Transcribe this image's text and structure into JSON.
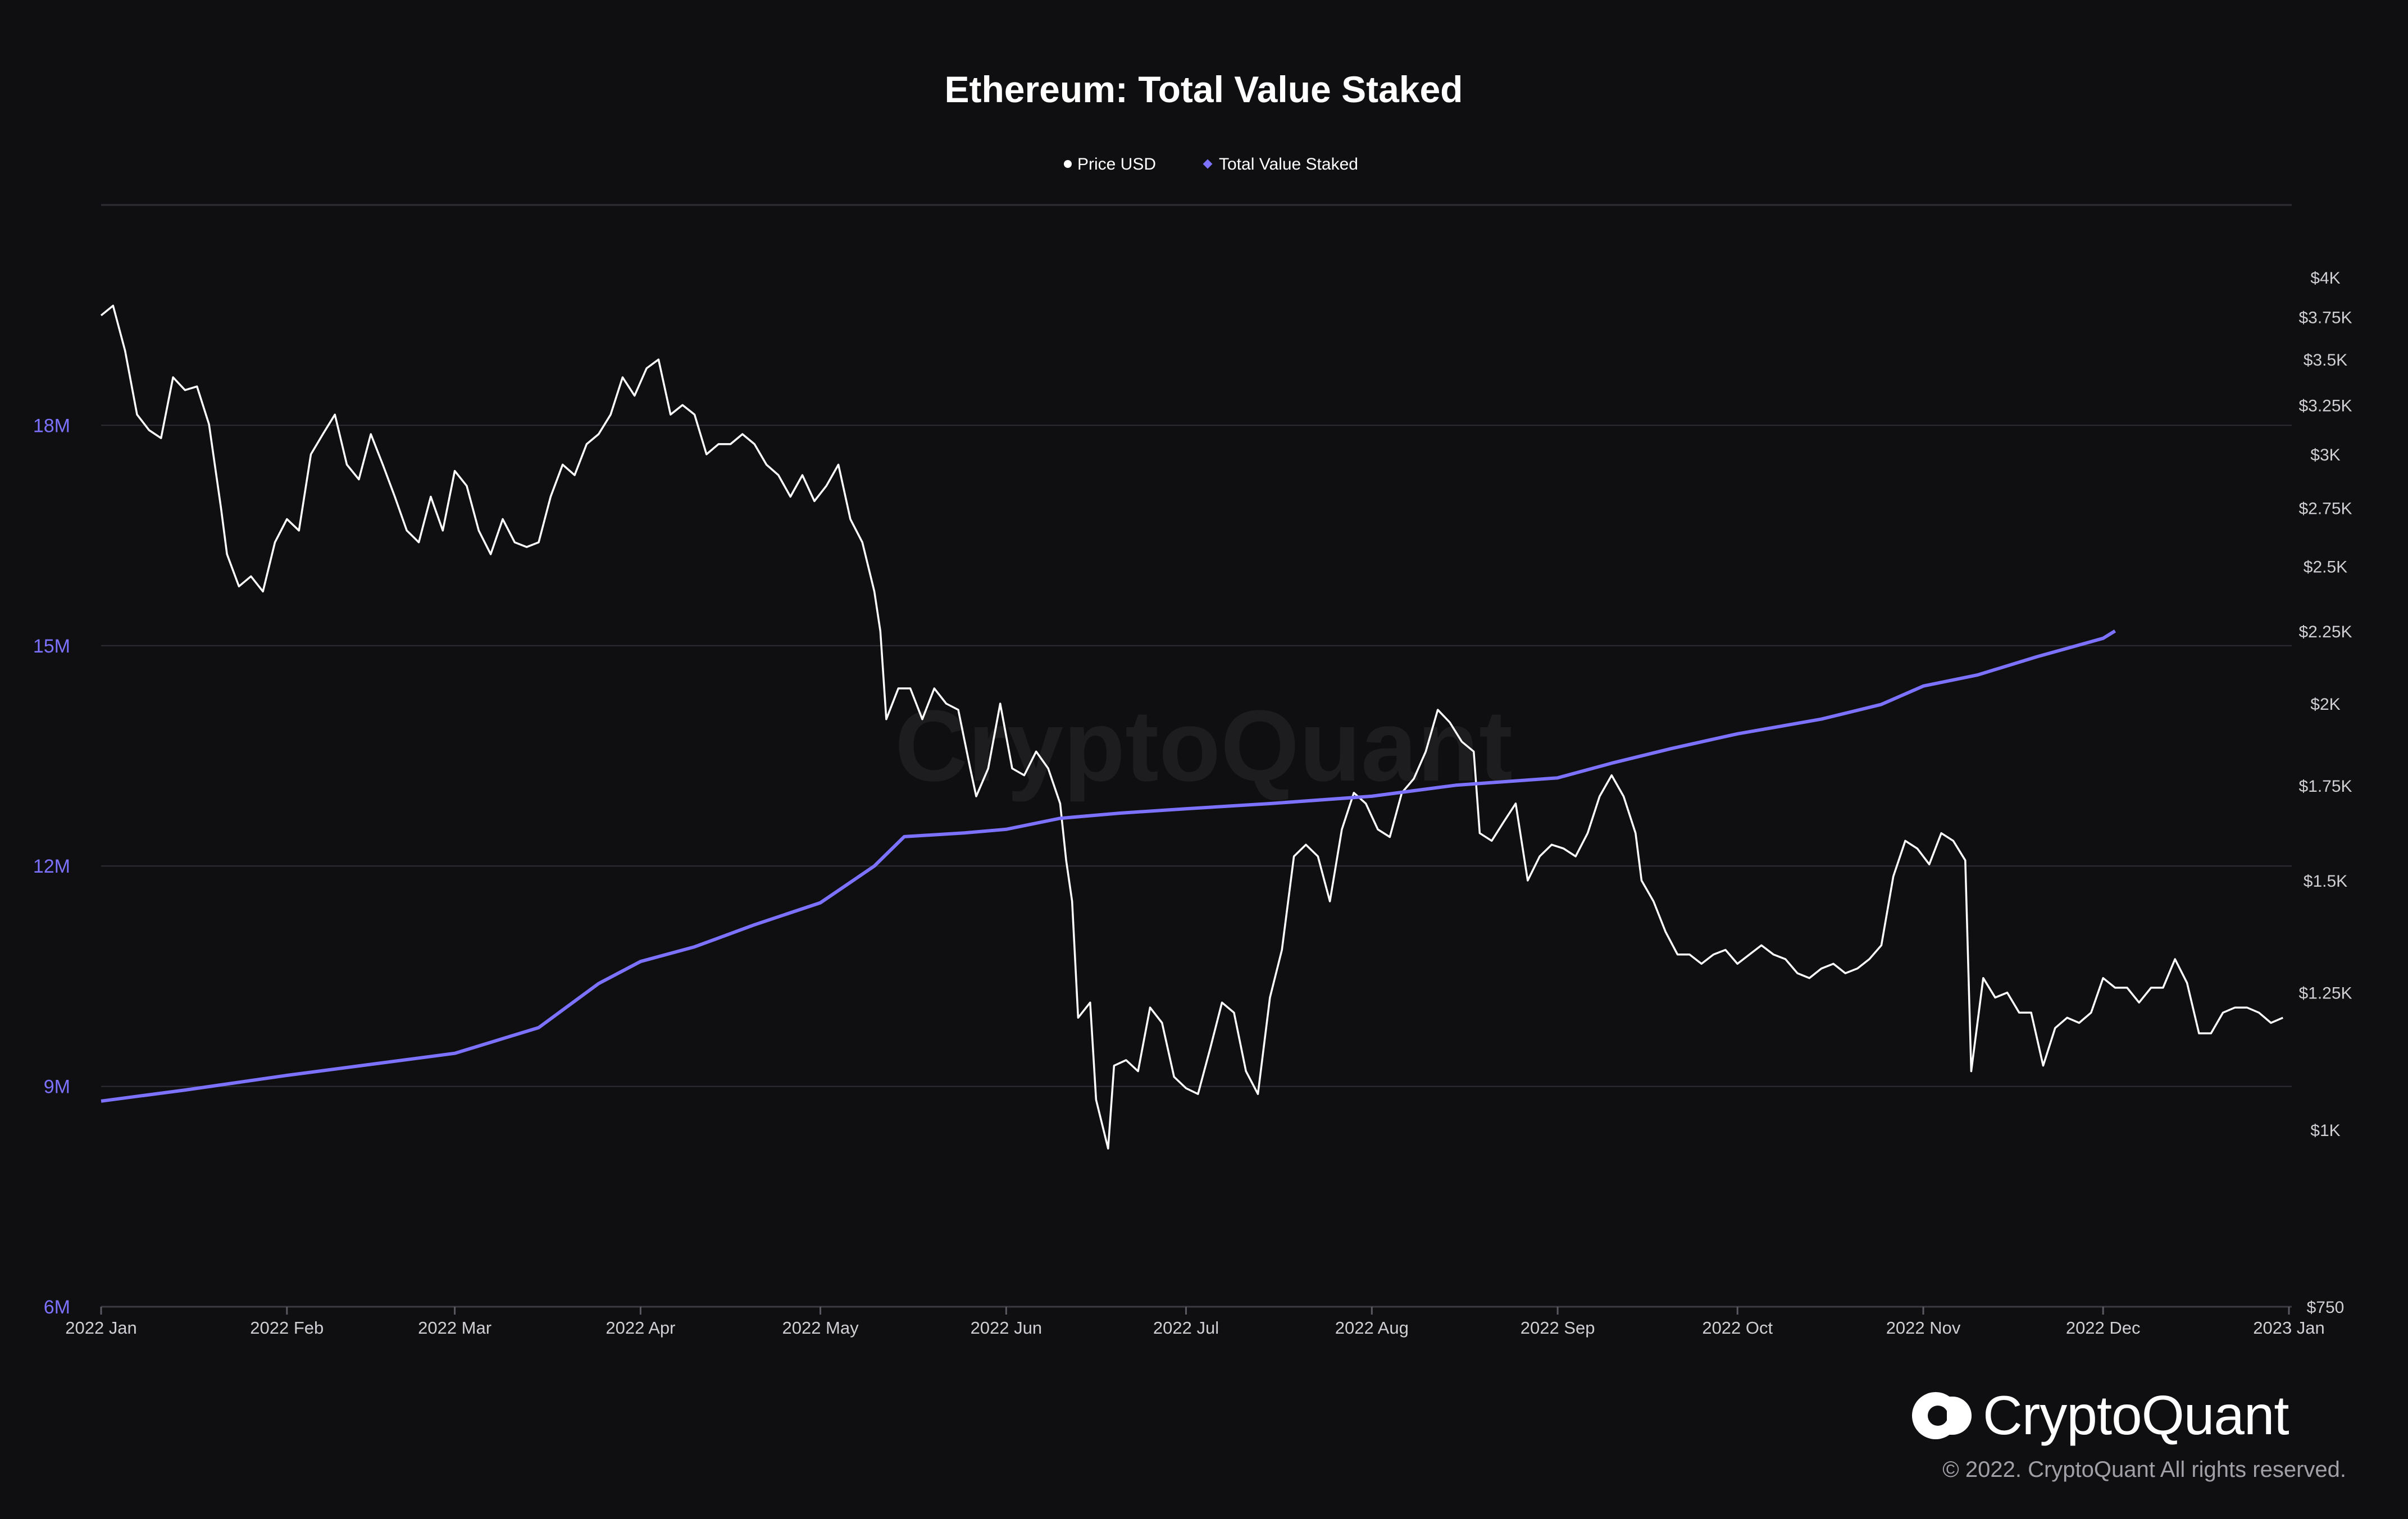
{
  "chart_data": {
    "type": "line",
    "title": "Ethereum: Total Value Staked",
    "legend": {
      "placement": "top-center",
      "entries": [
        {
          "name": "Price USD",
          "color": "#ffffff"
        },
        {
          "name": "Total Value Staked",
          "color": "#7c72ff"
        }
      ]
    },
    "x_axis": {
      "type": "date",
      "range": [
        "2022-01-01",
        "2023-01-01"
      ],
      "ticks": [
        {
          "date": "2022-01-01",
          "label": "2022 Jan"
        },
        {
          "date": "2022-02-01",
          "label": "2022 Feb"
        },
        {
          "date": "2022-03-01",
          "label": "2022 Mar"
        },
        {
          "date": "2022-04-01",
          "label": "2022 Apr"
        },
        {
          "date": "2022-05-01",
          "label": "2022 May"
        },
        {
          "date": "2022-06-01",
          "label": "2022 Jun"
        },
        {
          "date": "2022-07-01",
          "label": "2022 Jul"
        },
        {
          "date": "2022-08-01",
          "label": "2022 Aug"
        },
        {
          "date": "2022-09-01",
          "label": "2022 Sep"
        },
        {
          "date": "2022-10-01",
          "label": "2022 Oct"
        },
        {
          "date": "2022-11-01",
          "label": "2022 Nov"
        },
        {
          "date": "2022-12-01",
          "label": "2022 Dec"
        },
        {
          "date": "2023-01-01",
          "label": "2023 Jan"
        }
      ]
    },
    "y_axis_left": {
      "series": "Total Value Staked",
      "scale": "linear",
      "range": [
        6000000,
        21000000
      ],
      "ticks": [
        {
          "value": 6000000,
          "label": "6M"
        },
        {
          "value": 9000000,
          "label": "9M"
        },
        {
          "value": 12000000,
          "label": "12M"
        },
        {
          "value": 15000000,
          "label": "15M"
        },
        {
          "value": 18000000,
          "label": "18M"
        }
      ],
      "grid": true
    },
    "y_axis_right": {
      "series": "Price USD",
      "scale": "log",
      "range": [
        750,
        4500
      ],
      "ticks": [
        {
          "value": 750,
          "label": "$750"
        },
        {
          "value": 1000,
          "label": "$1K"
        },
        {
          "value": 1250,
          "label": "$1.25K"
        },
        {
          "value": 1500,
          "label": "$1.5K"
        },
        {
          "value": 1750,
          "label": "$1.75K"
        },
        {
          "value": 2000,
          "label": "$2K"
        },
        {
          "value": 2250,
          "label": "$2.25K"
        },
        {
          "value": 2500,
          "label": "$2.5K"
        },
        {
          "value": 2750,
          "label": "$2.75K"
        },
        {
          "value": 3000,
          "label": "$3K"
        },
        {
          "value": 3250,
          "label": "$3.25K"
        },
        {
          "value": 3500,
          "label": "$3.5K"
        },
        {
          "value": 3750,
          "label": "$3.75K"
        },
        {
          "value": 4000,
          "label": "$4K"
        }
      ]
    },
    "series": [
      {
        "name": "Price USD",
        "axis": "right",
        "color": "#ffffff",
        "points": [
          [
            "2022-01-01",
            3760
          ],
          [
            "2022-01-03",
            3820
          ],
          [
            "2022-01-05",
            3550
          ],
          [
            "2022-01-07",
            3200
          ],
          [
            "2022-01-09",
            3120
          ],
          [
            "2022-01-11",
            3080
          ],
          [
            "2022-01-13",
            3400
          ],
          [
            "2022-01-15",
            3330
          ],
          [
            "2022-01-17",
            3350
          ],
          [
            "2022-01-19",
            3150
          ],
          [
            "2022-01-21",
            2750
          ],
          [
            "2022-01-22",
            2550
          ],
          [
            "2022-01-24",
            2420
          ],
          [
            "2022-01-26",
            2460
          ],
          [
            "2022-01-28",
            2400
          ],
          [
            "2022-01-30",
            2600
          ],
          [
            "2022-02-01",
            2700
          ],
          [
            "2022-02-03",
            2650
          ],
          [
            "2022-02-05",
            3000
          ],
          [
            "2022-02-07",
            3100
          ],
          [
            "2022-02-09",
            3200
          ],
          [
            "2022-02-11",
            2950
          ],
          [
            "2022-02-13",
            2880
          ],
          [
            "2022-02-15",
            3100
          ],
          [
            "2022-02-17",
            2950
          ],
          [
            "2022-02-19",
            2800
          ],
          [
            "2022-02-21",
            2650
          ],
          [
            "2022-02-23",
            2600
          ],
          [
            "2022-02-25",
            2800
          ],
          [
            "2022-02-27",
            2650
          ],
          [
            "2022-03-01",
            2920
          ],
          [
            "2022-03-03",
            2850
          ],
          [
            "2022-03-05",
            2650
          ],
          [
            "2022-03-07",
            2550
          ],
          [
            "2022-03-09",
            2700
          ],
          [
            "2022-03-11",
            2600
          ],
          [
            "2022-03-13",
            2580
          ],
          [
            "2022-03-15",
            2600
          ],
          [
            "2022-03-17",
            2800
          ],
          [
            "2022-03-19",
            2950
          ],
          [
            "2022-03-21",
            2900
          ],
          [
            "2022-03-23",
            3050
          ],
          [
            "2022-03-25",
            3100
          ],
          [
            "2022-03-27",
            3200
          ],
          [
            "2022-03-29",
            3400
          ],
          [
            "2022-03-31",
            3300
          ],
          [
            "2022-04-02",
            3450
          ],
          [
            "2022-04-04",
            3500
          ],
          [
            "2022-04-06",
            3200
          ],
          [
            "2022-04-08",
            3250
          ],
          [
            "2022-04-10",
            3200
          ],
          [
            "2022-04-12",
            3000
          ],
          [
            "2022-04-14",
            3050
          ],
          [
            "2022-04-16",
            3050
          ],
          [
            "2022-04-18",
            3100
          ],
          [
            "2022-04-20",
            3050
          ],
          [
            "2022-04-22",
            2950
          ],
          [
            "2022-04-24",
            2900
          ],
          [
            "2022-04-26",
            2800
          ],
          [
            "2022-04-28",
            2900
          ],
          [
            "2022-04-30",
            2780
          ],
          [
            "2022-05-02",
            2850
          ],
          [
            "2022-05-04",
            2950
          ],
          [
            "2022-05-06",
            2700
          ],
          [
            "2022-05-08",
            2600
          ],
          [
            "2022-05-10",
            2400
          ],
          [
            "2022-05-11",
            2250
          ],
          [
            "2022-05-12",
            1950
          ],
          [
            "2022-05-14",
            2050
          ],
          [
            "2022-05-16",
            2050
          ],
          [
            "2022-05-18",
            1950
          ],
          [
            "2022-05-20",
            2050
          ],
          [
            "2022-05-22",
            2000
          ],
          [
            "2022-05-24",
            1980
          ],
          [
            "2022-05-26",
            1800
          ],
          [
            "2022-05-27",
            1720
          ],
          [
            "2022-05-29",
            1800
          ],
          [
            "2022-05-31",
            2000
          ],
          [
            "2022-06-02",
            1800
          ],
          [
            "2022-06-04",
            1780
          ],
          [
            "2022-06-06",
            1850
          ],
          [
            "2022-06-08",
            1800
          ],
          [
            "2022-06-10",
            1700
          ],
          [
            "2022-06-11",
            1550
          ],
          [
            "2022-06-12",
            1450
          ],
          [
            "2022-06-13",
            1200
          ],
          [
            "2022-06-15",
            1230
          ],
          [
            "2022-06-16",
            1050
          ],
          [
            "2022-06-18",
            970
          ],
          [
            "2022-06-19",
            1110
          ],
          [
            "2022-06-21",
            1120
          ],
          [
            "2022-06-23",
            1100
          ],
          [
            "2022-06-25",
            1220
          ],
          [
            "2022-06-27",
            1190
          ],
          [
            "2022-06-29",
            1090
          ],
          [
            "2022-07-01",
            1070
          ],
          [
            "2022-07-03",
            1060
          ],
          [
            "2022-07-05",
            1140
          ],
          [
            "2022-07-07",
            1230
          ],
          [
            "2022-07-09",
            1210
          ],
          [
            "2022-07-11",
            1100
          ],
          [
            "2022-07-13",
            1060
          ],
          [
            "2022-07-15",
            1240
          ],
          [
            "2022-07-17",
            1340
          ],
          [
            "2022-07-19",
            1560
          ],
          [
            "2022-07-21",
            1590
          ],
          [
            "2022-07-23",
            1560
          ],
          [
            "2022-07-25",
            1450
          ],
          [
            "2022-07-27",
            1630
          ],
          [
            "2022-07-29",
            1730
          ],
          [
            "2022-07-31",
            1700
          ],
          [
            "2022-08-02",
            1630
          ],
          [
            "2022-08-04",
            1610
          ],
          [
            "2022-08-06",
            1730
          ],
          [
            "2022-08-08",
            1770
          ],
          [
            "2022-08-10",
            1850
          ],
          [
            "2022-08-12",
            1980
          ],
          [
            "2022-08-14",
            1940
          ],
          [
            "2022-08-16",
            1880
          ],
          [
            "2022-08-18",
            1850
          ],
          [
            "2022-08-19",
            1620
          ],
          [
            "2022-08-21",
            1600
          ],
          [
            "2022-08-23",
            1650
          ],
          [
            "2022-08-25",
            1700
          ],
          [
            "2022-08-27",
            1500
          ],
          [
            "2022-08-29",
            1560
          ],
          [
            "2022-08-31",
            1590
          ],
          [
            "2022-09-02",
            1580
          ],
          [
            "2022-09-04",
            1560
          ],
          [
            "2022-09-06",
            1620
          ],
          [
            "2022-09-08",
            1720
          ],
          [
            "2022-09-10",
            1780
          ],
          [
            "2022-09-12",
            1720
          ],
          [
            "2022-09-14",
            1620
          ],
          [
            "2022-09-15",
            1500
          ],
          [
            "2022-09-17",
            1450
          ],
          [
            "2022-09-19",
            1380
          ],
          [
            "2022-09-21",
            1330
          ],
          [
            "2022-09-23",
            1330
          ],
          [
            "2022-09-25",
            1310
          ],
          [
            "2022-09-27",
            1330
          ],
          [
            "2022-09-29",
            1340
          ],
          [
            "2022-10-01",
            1310
          ],
          [
            "2022-10-03",
            1330
          ],
          [
            "2022-10-05",
            1350
          ],
          [
            "2022-10-07",
            1330
          ],
          [
            "2022-10-09",
            1320
          ],
          [
            "2022-10-11",
            1290
          ],
          [
            "2022-10-13",
            1280
          ],
          [
            "2022-10-15",
            1300
          ],
          [
            "2022-10-17",
            1310
          ],
          [
            "2022-10-19",
            1290
          ],
          [
            "2022-10-21",
            1300
          ],
          [
            "2022-10-23",
            1320
          ],
          [
            "2022-10-25",
            1350
          ],
          [
            "2022-10-27",
            1510
          ],
          [
            "2022-10-29",
            1600
          ],
          [
            "2022-10-31",
            1580
          ],
          [
            "2022-11-02",
            1540
          ],
          [
            "2022-11-04",
            1620
          ],
          [
            "2022-11-06",
            1600
          ],
          [
            "2022-11-08",
            1550
          ],
          [
            "2022-11-09",
            1100
          ],
          [
            "2022-11-11",
            1280
          ],
          [
            "2022-11-13",
            1240
          ],
          [
            "2022-11-15",
            1250
          ],
          [
            "2022-11-17",
            1210
          ],
          [
            "2022-11-19",
            1210
          ],
          [
            "2022-11-21",
            1110
          ],
          [
            "2022-11-23",
            1180
          ],
          [
            "2022-11-25",
            1200
          ],
          [
            "2022-11-27",
            1190
          ],
          [
            "2022-11-29",
            1210
          ],
          [
            "2022-12-01",
            1280
          ],
          [
            "2022-12-03",
            1260
          ],
          [
            "2022-12-05",
            1260
          ],
          [
            "2022-12-07",
            1230
          ],
          [
            "2022-12-09",
            1260
          ],
          [
            "2022-12-11",
            1260
          ],
          [
            "2022-12-13",
            1320
          ],
          [
            "2022-12-15",
            1270
          ],
          [
            "2022-12-17",
            1170
          ],
          [
            "2022-12-19",
            1170
          ],
          [
            "2022-12-21",
            1210
          ],
          [
            "2022-12-23",
            1220
          ],
          [
            "2022-12-25",
            1220
          ],
          [
            "2022-12-27",
            1210
          ],
          [
            "2022-12-29",
            1190
          ],
          [
            "2022-12-31",
            1200
          ]
        ]
      },
      {
        "name": "Total Value Staked",
        "axis": "left",
        "color": "#7c72ff",
        "points": [
          [
            "2022-01-01",
            8800000
          ],
          [
            "2022-01-15",
            8950000
          ],
          [
            "2022-02-01",
            9150000
          ],
          [
            "2022-02-15",
            9300000
          ],
          [
            "2022-03-01",
            9450000
          ],
          [
            "2022-03-15",
            9800000
          ],
          [
            "2022-03-25",
            10400000
          ],
          [
            "2022-04-01",
            10700000
          ],
          [
            "2022-04-10",
            10900000
          ],
          [
            "2022-04-20",
            11200000
          ],
          [
            "2022-05-01",
            11500000
          ],
          [
            "2022-05-10",
            12000000
          ],
          [
            "2022-05-15",
            12400000
          ],
          [
            "2022-05-25",
            12450000
          ],
          [
            "2022-06-01",
            12500000
          ],
          [
            "2022-06-10",
            12650000
          ],
          [
            "2022-06-20",
            12720000
          ],
          [
            "2022-07-01",
            12780000
          ],
          [
            "2022-07-15",
            12850000
          ],
          [
            "2022-08-01",
            12950000
          ],
          [
            "2022-08-15",
            13100000
          ],
          [
            "2022-09-01",
            13200000
          ],
          [
            "2022-09-10",
            13400000
          ],
          [
            "2022-09-20",
            13600000
          ],
          [
            "2022-10-01",
            13800000
          ],
          [
            "2022-10-15",
            14000000
          ],
          [
            "2022-10-25",
            14200000
          ],
          [
            "2022-11-01",
            14450000
          ],
          [
            "2022-11-10",
            14600000
          ],
          [
            "2022-11-20",
            14850000
          ],
          [
            "2022-12-01",
            15100000
          ],
          [
            "2022-12-03",
            15200000
          ]
        ]
      }
    ],
    "watermark": "CryptoQuant"
  },
  "branding": {
    "logo_text": "CryptoQuant",
    "copyright": "© 2022. CryptoQuant All rights reserved."
  }
}
